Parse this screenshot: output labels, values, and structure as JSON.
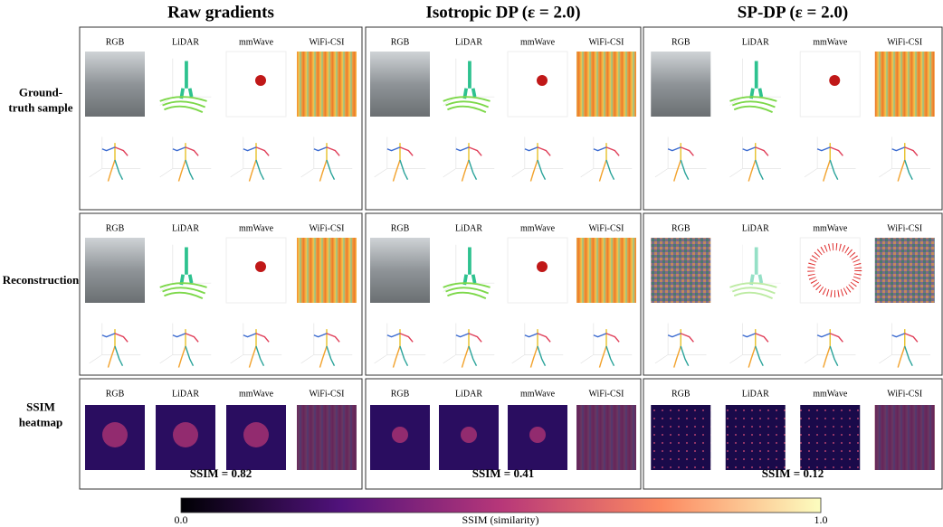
{
  "columns": [
    {
      "title": "Raw gradients",
      "ssim": "SSIM = 0.82"
    },
    {
      "title": "Isotropic DP (ε = 2.0)",
      "ssim": "SSIM = 0.41"
    },
    {
      "title": "SP-DP (ε = 2.0)",
      "ssim": "SSIM = 0.12"
    }
  ],
  "rows": [
    {
      "lines": [
        "Ground-",
        "truth sample"
      ]
    },
    {
      "lines": [
        "Reconstruction"
      ]
    },
    {
      "lines": [
        "SSIM",
        "heatmap"
      ]
    }
  ],
  "modalities": [
    "RGB",
    "LiDAR",
    "mmWave",
    "WiFi-CSI"
  ],
  "colorbar": {
    "min_label": "0.0",
    "max_label": "1.0",
    "label": "SSIM (similarity)"
  }
}
